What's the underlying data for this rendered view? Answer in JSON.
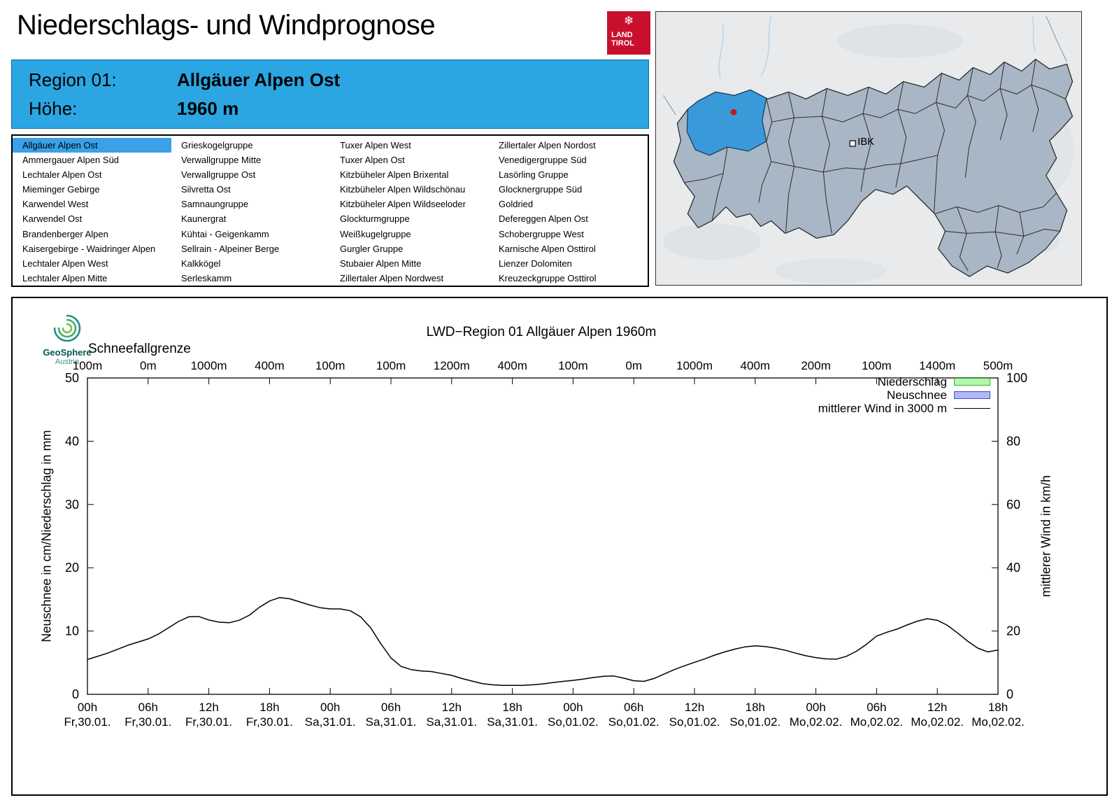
{
  "header": {
    "title": "Niederschlags- und Windprognose",
    "logo": {
      "line1": "LAND",
      "line2": "TIROL",
      "icon": "❄"
    }
  },
  "region_box": {
    "region_label": "Region 01:",
    "region_value": "Allgäuer Alpen Ost",
    "altitude_label": "Höhe:",
    "altitude_value": "1960 m"
  },
  "region_list": {
    "selected": "Allgäuer Alpen Ost",
    "columns": [
      [
        "Allgäuer Alpen Ost",
        "Ammergauer Alpen Süd",
        "Lechtaler Alpen Ost",
        "Mieminger Gebirge",
        "Karwendel West",
        "Karwendel Ost",
        "Brandenberger Alpen",
        "Kaisergebirge - Waidringer Alpen",
        "Lechtaler Alpen West",
        "Lechtaler Alpen Mitte"
      ],
      [
        "Grieskogelgruppe",
        "Verwallgruppe Mitte",
        "Verwallgruppe Ost",
        "Silvretta Ost",
        "Samnaungruppe",
        "Kaunergrat",
        "Kühtai - Geigenkamm",
        "Sellrain - Alpeiner Berge",
        "Kalkkögel",
        "Serleskamm"
      ],
      [
        "Tuxer Alpen West",
        "Tuxer Alpen Ost",
        "Kitzbüheler Alpen Brixental",
        "Kitzbüheler Alpen Wildschönau",
        "Kitzbüheler Alpen Wildseeloder",
        "Glockturmgruppe",
        "Weißkugelgruppe",
        "Gurgler Gruppe",
        "Stubaier Alpen Mitte",
        "Zillertaler Alpen Nordwest"
      ],
      [
        "Zillertaler Alpen Nordost",
        "Venedigergruppe Süd",
        "Lasörling Gruppe",
        "Glocknergruppe Süd",
        "Goldried",
        "Defereggen Alpen Ost",
        "Schobergruppe West",
        "Karnische Alpen Osttirol",
        "Lienzer Dolomiten",
        "Kreuzeckgruppe Osttirol"
      ]
    ]
  },
  "map": {
    "ibk_label": "IBK"
  },
  "chart": {
    "source_line1": "GeoSphere",
    "source_line2": "Austria",
    "snowline_label": "Schneefallgrenze"
  },
  "chart_data": {
    "type": "line",
    "title": "LWD−Region 01 Allgäuer Alpen 1960m",
    "ylabel_left": "Neuschnee in cm/Niederschlag in mm",
    "ylabel_right": "mittlerer Wind in km/h",
    "ylim_left": [
      0,
      50
    ],
    "ylim_right": [
      0,
      100
    ],
    "x_range_hours": [
      0,
      90
    ],
    "grid": false,
    "legend_position": "top-right",
    "x_ticks": [
      {
        "time": "00h",
        "date": "Fr,30.01."
      },
      {
        "time": "06h",
        "date": "Fr,30.01."
      },
      {
        "time": "12h",
        "date": "Fr,30.01."
      },
      {
        "time": "18h",
        "date": "Fr,30.01."
      },
      {
        "time": "00h",
        "date": "Sa,31.01."
      },
      {
        "time": "06h",
        "date": "Sa,31.01."
      },
      {
        "time": "12h",
        "date": "Sa,31.01."
      },
      {
        "time": "18h",
        "date": "Sa,31.01."
      },
      {
        "time": "00h",
        "date": "So,01.02."
      },
      {
        "time": "06h",
        "date": "So,01.02."
      },
      {
        "time": "12h",
        "date": "So,01.02."
      },
      {
        "time": "18h",
        "date": "So,01.02."
      },
      {
        "time": "00h",
        "date": "Mo,02.02."
      },
      {
        "time": "06h",
        "date": "Mo,02.02."
      },
      {
        "time": "12h",
        "date": "Mo,02.02."
      },
      {
        "time": "18h",
        "date": "Mo,02.02."
      }
    ],
    "snowline_values": [
      "100m",
      "0m",
      "1000m",
      "400m",
      "100m",
      "100m",
      "1200m",
      "400m",
      "100m",
      "0m",
      "1000m",
      "400m",
      "200m",
      "100m",
      "1400m",
      "500m"
    ],
    "legend": [
      {
        "label": "Niederschlag",
        "type": "box",
        "fill": "#b4f7ae",
        "stroke": "#30b430"
      },
      {
        "label": "Neuschnee",
        "type": "box",
        "fill": "#b2b8f2",
        "stroke": "#4848d0"
      },
      {
        "label": "mittlerer Wind in 3000 m",
        "type": "line",
        "color": "#000000"
      }
    ],
    "series": [
      {
        "name": "Niederschlag",
        "axis": "left",
        "unit": "mm",
        "values": []
      },
      {
        "name": "Neuschnee",
        "axis": "left",
        "unit": "cm",
        "values": []
      },
      {
        "name": "mittlerer Wind in 3000 m",
        "axis": "right",
        "unit": "km/h",
        "points": [
          [
            0,
            11
          ],
          [
            2,
            13
          ],
          [
            4,
            15.5
          ],
          [
            6,
            17.5
          ],
          [
            7,
            19
          ],
          [
            8,
            21
          ],
          [
            9,
            23
          ],
          [
            10,
            24.5
          ],
          [
            11,
            24.6
          ],
          [
            12,
            23.5
          ],
          [
            13,
            22.8
          ],
          [
            14,
            22.6
          ],
          [
            15,
            23.4
          ],
          [
            16,
            25
          ],
          [
            17,
            27.5
          ],
          [
            18,
            29.5
          ],
          [
            19,
            30.6
          ],
          [
            20,
            30.2
          ],
          [
            21,
            29.2
          ],
          [
            22,
            28.2
          ],
          [
            23,
            27.4
          ],
          [
            24,
            27
          ],
          [
            25,
            27
          ],
          [
            26,
            26.4
          ],
          [
            27,
            24.5
          ],
          [
            28,
            21
          ],
          [
            29,
            16
          ],
          [
            30,
            11.5
          ],
          [
            31,
            8.8
          ],
          [
            32,
            7.8
          ],
          [
            33,
            7.4
          ],
          [
            34,
            7.2
          ],
          [
            35,
            6.6
          ],
          [
            36,
            6
          ],
          [
            37,
            5
          ],
          [
            38,
            4.2
          ],
          [
            39,
            3.4
          ],
          [
            40,
            3
          ],
          [
            41,
            2.8
          ],
          [
            42,
            2.8
          ],
          [
            43,
            2.8
          ],
          [
            44,
            3
          ],
          [
            45,
            3.3
          ],
          [
            46,
            3.7
          ],
          [
            47,
            4.1
          ],
          [
            48,
            4.4
          ],
          [
            49,
            4.8
          ],
          [
            50,
            5.3
          ],
          [
            51,
            5.7
          ],
          [
            52,
            5.8
          ],
          [
            53,
            5.1
          ],
          [
            54,
            4.3
          ],
          [
            55,
            4.1
          ],
          [
            56,
            5
          ],
          [
            57,
            6.4
          ],
          [
            58,
            7.8
          ],
          [
            59,
            9
          ],
          [
            60,
            10.1
          ],
          [
            61,
            11.2
          ],
          [
            62,
            12.4
          ],
          [
            63,
            13.4
          ],
          [
            64,
            14.3
          ],
          [
            65,
            15
          ],
          [
            66,
            15.3
          ],
          [
            67,
            15.1
          ],
          [
            68,
            14.6
          ],
          [
            69,
            13.9
          ],
          [
            70,
            13
          ],
          [
            71,
            12.2
          ],
          [
            72,
            11.6
          ],
          [
            73,
            11.2
          ],
          [
            74,
            11.1
          ],
          [
            75,
            12
          ],
          [
            76,
            13.6
          ],
          [
            77,
            15.8
          ],
          [
            78,
            18.4
          ],
          [
            79,
            19.6
          ],
          [
            80,
            20.6
          ],
          [
            81,
            21.9
          ],
          [
            82,
            23.1
          ],
          [
            83,
            23.9
          ],
          [
            84,
            23.4
          ],
          [
            85,
            21.8
          ],
          [
            86,
            19.4
          ],
          [
            87,
            16.8
          ],
          [
            88,
            14.6
          ],
          [
            89,
            13.4
          ],
          [
            90,
            14
          ]
        ]
      }
    ]
  },
  "colors": {
    "accent_blue": "#2BA6E2",
    "selected_item_blue": "#3AA0E8",
    "logo_red": "#C8102E",
    "map_region_fill": "#A9B6C5",
    "map_highlight": "#3A9AD9",
    "map_marker_red": "#C21B1B",
    "legend_precip_green": "#b4f7ae",
    "legend_snow_blue": "#b2b8f2"
  }
}
